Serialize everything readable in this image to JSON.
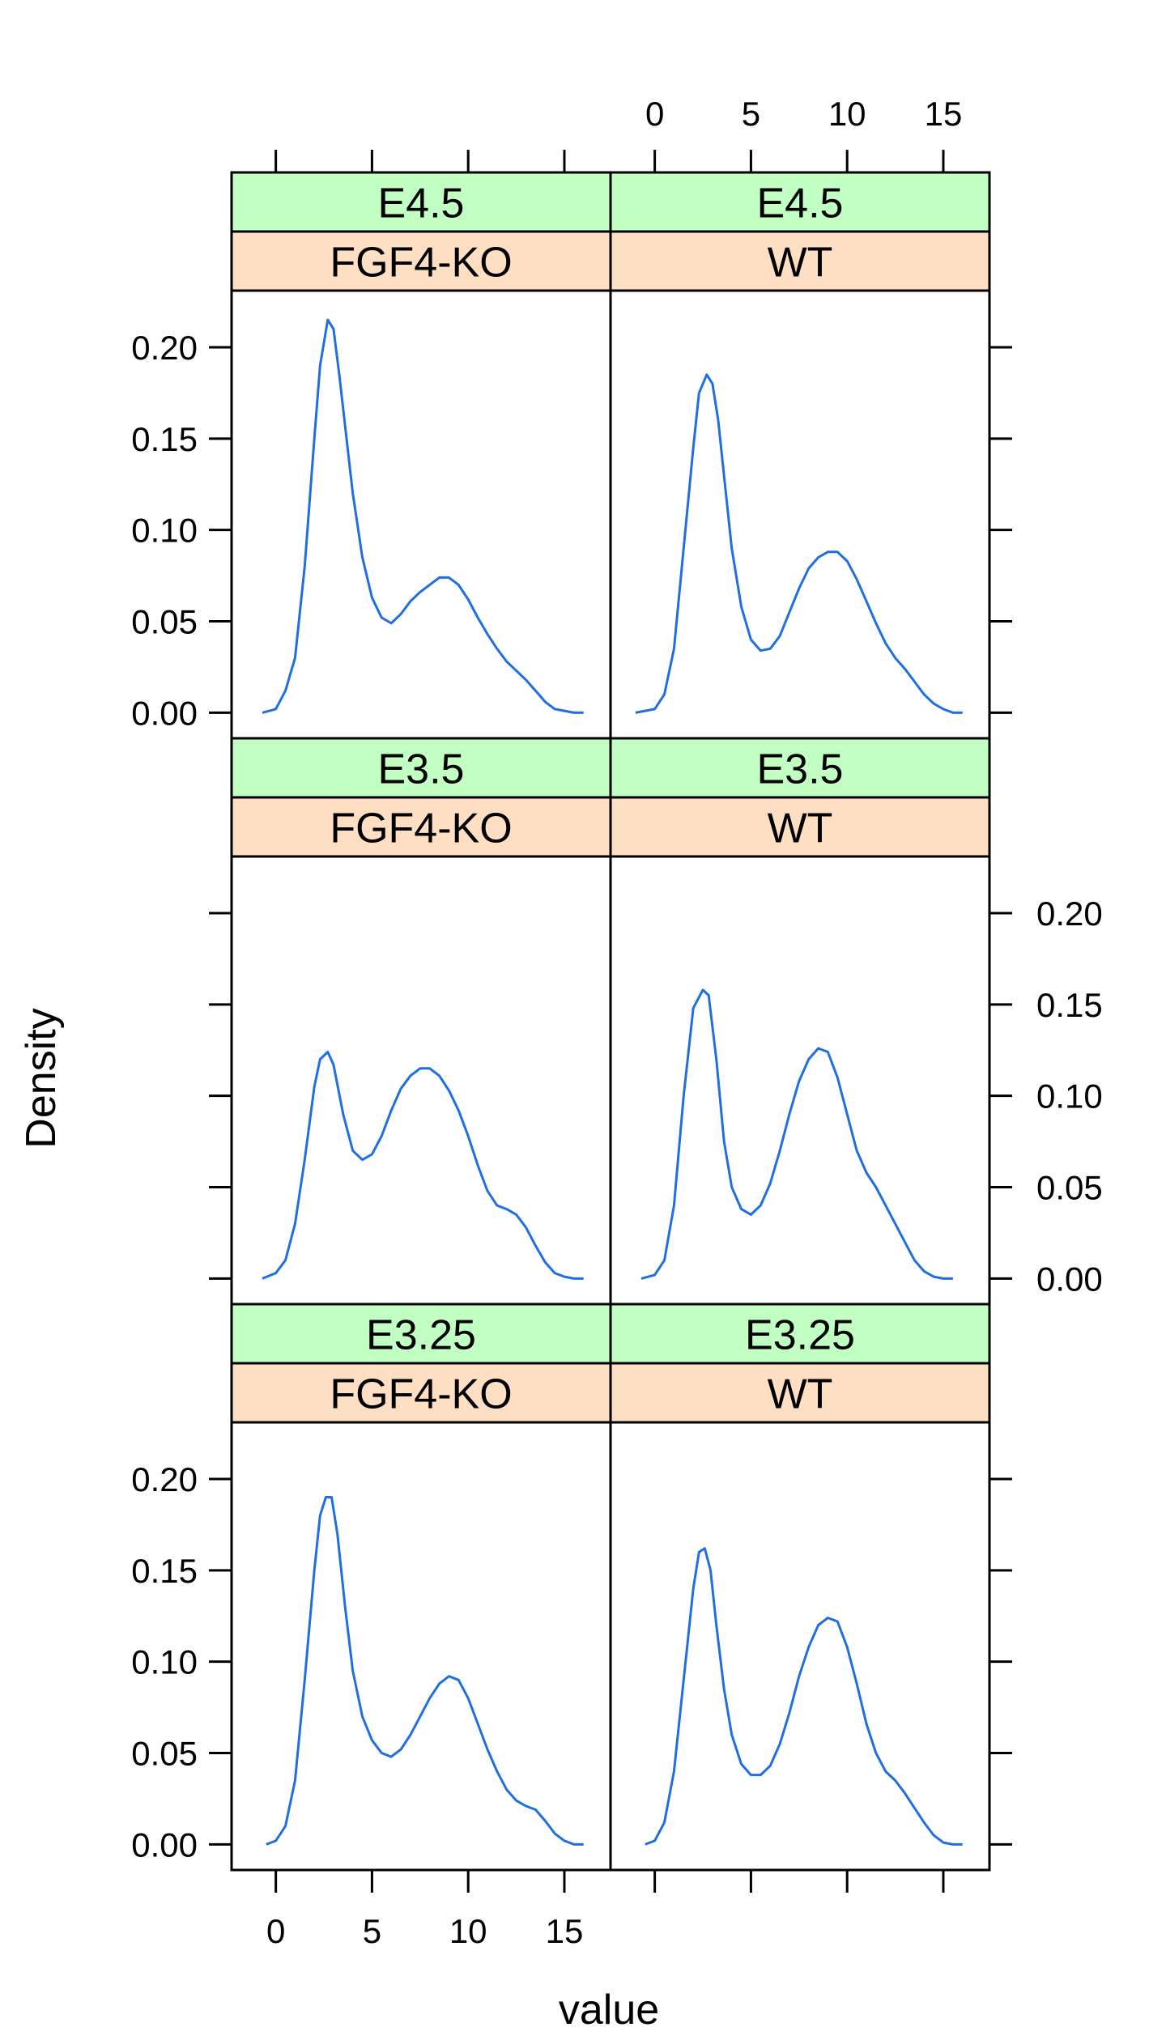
{
  "chart_data": {
    "type": "line",
    "title": "",
    "xlabel": "value",
    "ylabel": "Density",
    "xlim": [
      -2.3,
      17.4
    ],
    "ylim": [
      -0.014,
      0.231
    ],
    "x_ticks": [
      0,
      5,
      10,
      15
    ],
    "y_ticks": [
      0.0,
      0.05,
      0.1,
      0.15,
      0.2
    ],
    "y_tick_labels": [
      "0.00",
      "0.05",
      "0.10",
      "0.15",
      "0.20"
    ],
    "grid": false,
    "legend": "none",
    "colors": {
      "line": "#1f6fe0",
      "strip_top": "#c2ffc2",
      "strip_bottom": "#ffdfc3",
      "frame": "#000000"
    },
    "panels": [
      {
        "stage": "E4.5",
        "genotype": "FGF4-KO",
        "x": [
          -0.7,
          0,
          0.5,
          1,
          1.5,
          2,
          2.3,
          2.7,
          3,
          3.3,
          3.7,
          4,
          4.5,
          5,
          5.5,
          6,
          6.5,
          7,
          7.5,
          8,
          8.5,
          9,
          9.5,
          10,
          10.5,
          11,
          11.5,
          12,
          12.5,
          13,
          13.5,
          14,
          14.5,
          15,
          15.5,
          16
        ],
        "y": [
          0.0,
          0.002,
          0.012,
          0.03,
          0.08,
          0.15,
          0.19,
          0.215,
          0.21,
          0.185,
          0.148,
          0.12,
          0.085,
          0.063,
          0.052,
          0.049,
          0.054,
          0.061,
          0.066,
          0.07,
          0.074,
          0.074,
          0.07,
          0.062,
          0.052,
          0.043,
          0.035,
          0.028,
          0.023,
          0.018,
          0.012,
          0.006,
          0.002,
          0.001,
          0.0,
          0.0
        ]
      },
      {
        "stage": "E4.5",
        "genotype": "WT",
        "x": [
          -1,
          0,
          0.5,
          1,
          1.5,
          2,
          2.3,
          2.7,
          3,
          3.3,
          3.7,
          4,
          4.5,
          5,
          5.5,
          6,
          6.5,
          7,
          7.5,
          8,
          8.5,
          9,
          9.5,
          10,
          10.5,
          11,
          11.5,
          12,
          12.5,
          13,
          13.5,
          14,
          14.5,
          15,
          15.5,
          16
        ],
        "y": [
          0.0,
          0.002,
          0.01,
          0.035,
          0.09,
          0.145,
          0.175,
          0.185,
          0.18,
          0.16,
          0.12,
          0.09,
          0.058,
          0.04,
          0.034,
          0.035,
          0.042,
          0.055,
          0.068,
          0.079,
          0.085,
          0.088,
          0.088,
          0.083,
          0.073,
          0.061,
          0.049,
          0.038,
          0.03,
          0.024,
          0.017,
          0.01,
          0.005,
          0.002,
          0.0,
          0.0
        ]
      },
      {
        "stage": "E3.5",
        "genotype": "FGF4-KO",
        "x": [
          -0.7,
          0,
          0.5,
          1,
          1.5,
          2,
          2.3,
          2.7,
          3,
          3.5,
          4,
          4.5,
          5,
          5.5,
          6,
          6.5,
          7,
          7.5,
          8,
          8.5,
          9,
          9.5,
          10,
          10.5,
          11,
          11.5,
          12,
          12.5,
          13,
          13.5,
          14,
          14.5,
          15,
          15.5,
          16
        ],
        "y": [
          0.0,
          0.003,
          0.01,
          0.03,
          0.065,
          0.105,
          0.12,
          0.124,
          0.117,
          0.09,
          0.07,
          0.065,
          0.068,
          0.078,
          0.092,
          0.104,
          0.111,
          0.115,
          0.115,
          0.111,
          0.103,
          0.092,
          0.078,
          0.062,
          0.048,
          0.04,
          0.038,
          0.035,
          0.028,
          0.018,
          0.009,
          0.003,
          0.001,
          0.0,
          0.0
        ]
      },
      {
        "stage": "E3.5",
        "genotype": "WT",
        "x": [
          -0.7,
          0,
          0.5,
          1,
          1.5,
          2,
          2.5,
          2.8,
          3.2,
          3.6,
          4,
          4.5,
          5,
          5.5,
          6,
          6.5,
          7,
          7.5,
          8,
          8.5,
          9,
          9.5,
          10,
          10.5,
          11,
          11.5,
          12,
          12.5,
          13,
          13.5,
          14,
          14.5,
          15,
          15.5
        ],
        "y": [
          0.0,
          0.002,
          0.01,
          0.04,
          0.1,
          0.148,
          0.158,
          0.155,
          0.12,
          0.075,
          0.05,
          0.038,
          0.035,
          0.04,
          0.052,
          0.07,
          0.09,
          0.108,
          0.12,
          0.126,
          0.124,
          0.11,
          0.09,
          0.07,
          0.058,
          0.05,
          0.04,
          0.03,
          0.02,
          0.01,
          0.004,
          0.001,
          0.0,
          0.0
        ]
      },
      {
        "stage": "E3.25",
        "genotype": "FGF4-KO",
        "x": [
          -0.5,
          0,
          0.5,
          1,
          1.5,
          2,
          2.3,
          2.6,
          2.9,
          3.2,
          3.6,
          4,
          4.5,
          5,
          5.5,
          6,
          6.5,
          7,
          7.5,
          8,
          8.5,
          9,
          9.5,
          10,
          10.5,
          11,
          11.5,
          12,
          12.5,
          13,
          13.5,
          14,
          14.5,
          15,
          15.5,
          16
        ],
        "y": [
          0.0,
          0.002,
          0.01,
          0.035,
          0.09,
          0.15,
          0.18,
          0.19,
          0.19,
          0.17,
          0.13,
          0.095,
          0.07,
          0.057,
          0.05,
          0.048,
          0.052,
          0.06,
          0.07,
          0.08,
          0.088,
          0.092,
          0.09,
          0.08,
          0.066,
          0.052,
          0.04,
          0.03,
          0.024,
          0.021,
          0.019,
          0.013,
          0.006,
          0.002,
          0.0,
          0.0
        ]
      },
      {
        "stage": "E3.25",
        "genotype": "WT",
        "x": [
          -0.5,
          0,
          0.5,
          1,
          1.5,
          2,
          2.3,
          2.6,
          2.9,
          3.2,
          3.6,
          4,
          4.5,
          5,
          5.5,
          6,
          6.5,
          7,
          7.5,
          8,
          8.5,
          9,
          9.5,
          10,
          10.5,
          11,
          11.5,
          12,
          12.5,
          13,
          13.5,
          14,
          14.5,
          15,
          15.5,
          16
        ],
        "y": [
          0.0,
          0.002,
          0.012,
          0.04,
          0.09,
          0.14,
          0.16,
          0.162,
          0.15,
          0.12,
          0.085,
          0.06,
          0.044,
          0.038,
          0.038,
          0.043,
          0.055,
          0.072,
          0.092,
          0.108,
          0.12,
          0.124,
          0.122,
          0.108,
          0.088,
          0.066,
          0.05,
          0.04,
          0.035,
          0.028,
          0.02,
          0.012,
          0.005,
          0.001,
          0.0,
          0.0
        ]
      }
    ]
  }
}
